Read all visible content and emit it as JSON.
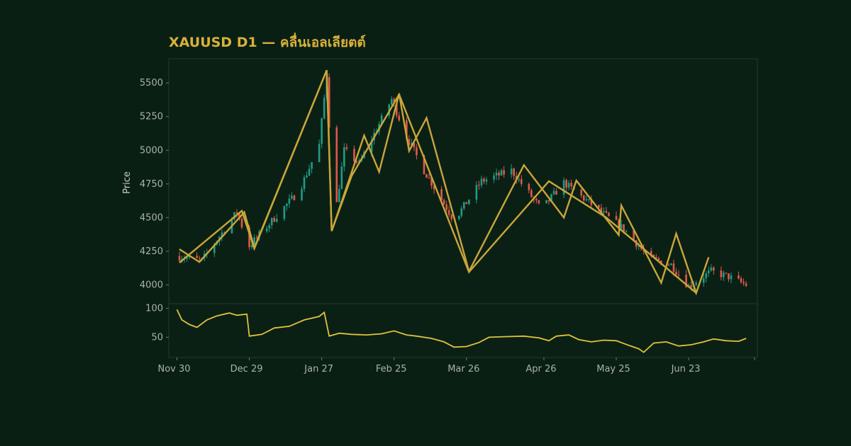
{
  "chart_data": {
    "type": "candlestick",
    "title": "XAUUSD D1 — คลื่นเอลเลียตต์",
    "ylabel": "Price",
    "ylim": [
      3860,
      5680
    ],
    "yticks": [
      "4000",
      "4250",
      "4500",
      "4750",
      "5000",
      "5250",
      "5500"
    ],
    "xticks": [
      "Nov 30",
      "Dec 29",
      "Jan 27",
      "Feb 25",
      "Mar 26",
      "Apr 26",
      "May 25",
      "Jun 23"
    ],
    "colors": {
      "background": "#0a1f14",
      "plot_background": "#0b2015",
      "up": "#1f9b86",
      "down": "#e0584a",
      "wave": "#c9a63a",
      "oscillator": "#e0c23c",
      "title": "#d9b13b"
    },
    "price_path_keypoints": [
      {
        "date": "2025-11-30",
        "price": 4215
      },
      {
        "date": "2025-12-10",
        "price": 4180
      },
      {
        "date": "2025-12-24",
        "price": 4540
      },
      {
        "date": "2025-12-29",
        "price": 4290
      },
      {
        "date": "2026-01-18",
        "price": 4700
      },
      {
        "date": "2026-01-26",
        "price": 5040
      },
      {
        "date": "2026-01-29",
        "price": 5560
      },
      {
        "date": "2026-02-01",
        "price": 4470
      },
      {
        "date": "2026-02-05",
        "price": 5000
      },
      {
        "date": "2026-02-11",
        "price": 4900
      },
      {
        "date": "2026-02-24",
        "price": 5380
      },
      {
        "date": "2026-03-02",
        "price": 5100
      },
      {
        "date": "2026-03-09",
        "price": 4850
      },
      {
        "date": "2026-03-21",
        "price": 4480
      },
      {
        "date": "2026-04-01",
        "price": 4770
      },
      {
        "date": "2026-04-13",
        "price": 4850
      },
      {
        "date": "2026-04-25",
        "price": 4560
      },
      {
        "date": "2026-05-04",
        "price": 4760
      },
      {
        "date": "2026-05-19",
        "price": 4540
      },
      {
        "date": "2026-05-29",
        "price": 4400
      },
      {
        "date": "2026-06-07",
        "price": 4200
      },
      {
        "date": "2026-06-16",
        "price": 4150
      },
      {
        "date": "2026-06-23",
        "price": 3990
      },
      {
        "date": "2026-07-02",
        "price": 4100
      },
      {
        "date": "2026-07-09",
        "price": 4060
      },
      {
        "date": "2026-07-16",
        "price": 4000
      }
    ],
    "wave_lines": [
      [
        {
          "date": "2025-12-01",
          "price": 4265
        },
        {
          "date": "2025-12-09",
          "price": 4170
        },
        {
          "date": "2025-12-27",
          "price": 4540
        },
        {
          "date": "2025-12-31",
          "price": 4275
        },
        {
          "date": "2026-01-29",
          "price": 5595
        },
        {
          "date": "2026-01-31",
          "price": 4400
        },
        {
          "date": "2026-02-08",
          "price": 4810
        },
        {
          "date": "2026-02-27",
          "price": 5415
        },
        {
          "date": "2026-03-27",
          "price": 4095
        },
        {
          "date": "2026-04-28",
          "price": 4770
        },
        {
          "date": "2026-05-21",
          "price": 4500
        },
        {
          "date": "2026-06-26",
          "price": 3940
        }
      ],
      [
        {
          "date": "2025-12-01",
          "price": 4165
        },
        {
          "date": "2025-12-26",
          "price": 4550
        },
        {
          "date": "2025-12-31",
          "price": 4270
        },
        {
          "date": "2026-01-29",
          "price": 5595
        },
        {
          "date": "2026-01-31",
          "price": 4400
        },
        {
          "date": "2026-02-13",
          "price": 5110
        },
        {
          "date": "2026-02-19",
          "price": 4840
        },
        {
          "date": "2026-02-27",
          "price": 5420
        },
        {
          "date": "2026-03-03",
          "price": 4995
        },
        {
          "date": "2026-03-10",
          "price": 5240
        },
        {
          "date": "2026-03-27",
          "price": 4100
        },
        {
          "date": "2026-04-18",
          "price": 4890
        },
        {
          "date": "2026-05-04",
          "price": 4500
        },
        {
          "date": "2026-05-09",
          "price": 4775
        },
        {
          "date": "2026-05-26",
          "price": 4370
        },
        {
          "date": "2026-05-27",
          "price": 4590
        },
        {
          "date": "2026-06-12",
          "price": 4015
        },
        {
          "date": "2026-06-18",
          "price": 4380
        },
        {
          "date": "2026-06-26",
          "price": 3940
        },
        {
          "date": "2026-07-01",
          "price": 4205
        }
      ]
    ],
    "oscillator": {
      "ylim": [
        15,
        108
      ],
      "yticks": [
        "50",
        "100"
      ],
      "keypoints": [
        {
          "date": "2025-11-30",
          "value": 98
        },
        {
          "date": "2025-12-02",
          "value": 80
        },
        {
          "date": "2025-12-05",
          "value": 72
        },
        {
          "date": "2025-12-08",
          "value": 67
        },
        {
          "date": "2025-12-12",
          "value": 80
        },
        {
          "date": "2025-12-16",
          "value": 87
        },
        {
          "date": "2025-12-21",
          "value": 92
        },
        {
          "date": "2025-12-24",
          "value": 88
        },
        {
          "date": "2025-12-28",
          "value": 90
        },
        {
          "date": "2025-12-29",
          "value": 52
        },
        {
          "date": "2026-01-03",
          "value": 55
        },
        {
          "date": "2026-01-08",
          "value": 66
        },
        {
          "date": "2026-01-14",
          "value": 69
        },
        {
          "date": "2026-01-20",
          "value": 80
        },
        {
          "date": "2026-01-26",
          "value": 86
        },
        {
          "date": "2026-01-28",
          "value": 93
        },
        {
          "date": "2026-01-30",
          "value": 52
        },
        {
          "date": "2026-02-03",
          "value": 57
        },
        {
          "date": "2026-02-08",
          "value": 55
        },
        {
          "date": "2026-02-14",
          "value": 54
        },
        {
          "date": "2026-02-20",
          "value": 56
        },
        {
          "date": "2026-02-25",
          "value": 61
        },
        {
          "date": "2026-03-02",
          "value": 54
        },
        {
          "date": "2026-03-06",
          "value": 52
        },
        {
          "date": "2026-03-12",
          "value": 48
        },
        {
          "date": "2026-03-17",
          "value": 42
        },
        {
          "date": "2026-03-21",
          "value": 33
        },
        {
          "date": "2026-03-26",
          "value": 34
        },
        {
          "date": "2026-03-31",
          "value": 41
        },
        {
          "date": "2026-04-04",
          "value": 50
        },
        {
          "date": "2026-04-10",
          "value": 51
        },
        {
          "date": "2026-04-18",
          "value": 52
        },
        {
          "date": "2026-04-24",
          "value": 49
        },
        {
          "date": "2026-04-28",
          "value": 44
        },
        {
          "date": "2026-05-01",
          "value": 52
        },
        {
          "date": "2026-05-06",
          "value": 54
        },
        {
          "date": "2026-05-10",
          "value": 46
        },
        {
          "date": "2026-05-15",
          "value": 42
        },
        {
          "date": "2026-05-20",
          "value": 45
        },
        {
          "date": "2026-05-25",
          "value": 44
        },
        {
          "date": "2026-05-30",
          "value": 36
        },
        {
          "date": "2026-06-03",
          "value": 30
        },
        {
          "date": "2026-06-05",
          "value": 24
        },
        {
          "date": "2026-06-09",
          "value": 40
        },
        {
          "date": "2026-06-14",
          "value": 42
        },
        {
          "date": "2026-06-19",
          "value": 35
        },
        {
          "date": "2026-06-24",
          "value": 37
        },
        {
          "date": "2026-06-29",
          "value": 42
        },
        {
          "date": "2026-07-03",
          "value": 47
        },
        {
          "date": "2026-07-08",
          "value": 44
        },
        {
          "date": "2026-07-13",
          "value": 43
        },
        {
          "date": "2026-07-16",
          "value": 48
        }
      ]
    }
  }
}
